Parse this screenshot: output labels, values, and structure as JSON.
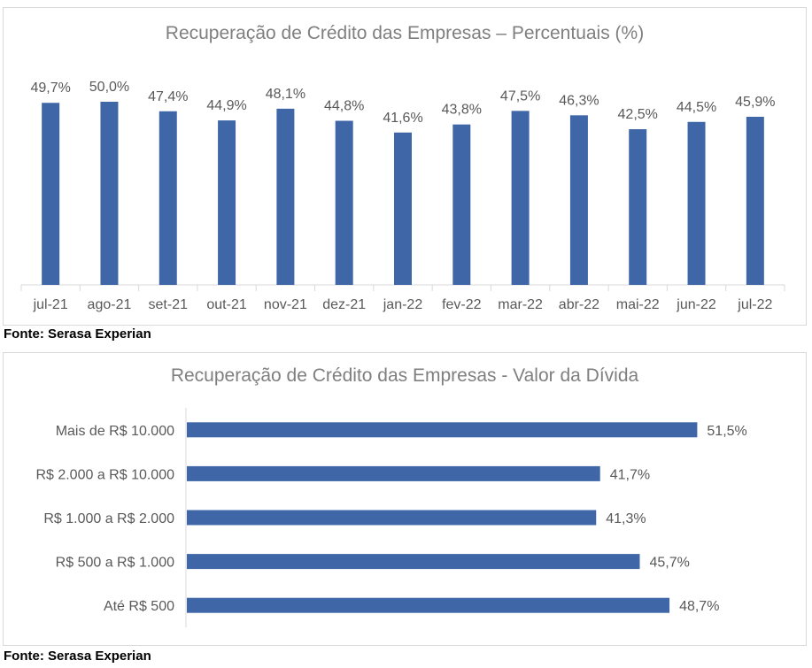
{
  "colors": {
    "bar": "#3f67a8",
    "axis": "#d9d9d9",
    "text": "#595959",
    "title": "#7f7f7f"
  },
  "sources": [
    "Fonte: Serasa Experian",
    "Fonte: Serasa Experian"
  ],
  "chart_data": [
    {
      "type": "bar",
      "title": "Recuperação de Crédito das Empresas – Percentuais (%)",
      "categories": [
        "jul-21",
        "ago-21",
        "set-21",
        "out-21",
        "nov-21",
        "dez-21",
        "jan-22",
        "fev-22",
        "mar-22",
        "abr-22",
        "mai-22",
        "jun-22",
        "jul-22"
      ],
      "values": [
        49.7,
        50.0,
        47.4,
        44.9,
        48.1,
        44.8,
        41.6,
        43.8,
        47.5,
        46.3,
        42.5,
        44.5,
        45.9
      ],
      "value_labels": [
        "49,7%",
        "50,0%",
        "47,4%",
        "44,9%",
        "48,1%",
        "44,8%",
        "41,6%",
        "43,8%",
        "47,5%",
        "46,3%",
        "42,5%",
        "44,5%",
        "45,9%"
      ],
      "ylim": [
        0,
        50
      ],
      "grid": false
    },
    {
      "type": "bar",
      "orientation": "horizontal",
      "title": "Recuperação de Crédito das Empresas - Valor da Dívida",
      "categories": [
        "Mais de R$ 10.000",
        "R$ 2.000 a R$ 10.000",
        "R$ 1.000 a R$ 2.000",
        "R$ 500 a R$ 1.000",
        "Até R$ 500"
      ],
      "values": [
        51.5,
        41.7,
        41.3,
        45.7,
        48.7
      ],
      "value_labels": [
        "51,5%",
        "41,7%",
        "41,3%",
        "45,7%",
        "48,7%"
      ],
      "xlim": [
        0,
        52
      ],
      "grid": false
    }
  ]
}
